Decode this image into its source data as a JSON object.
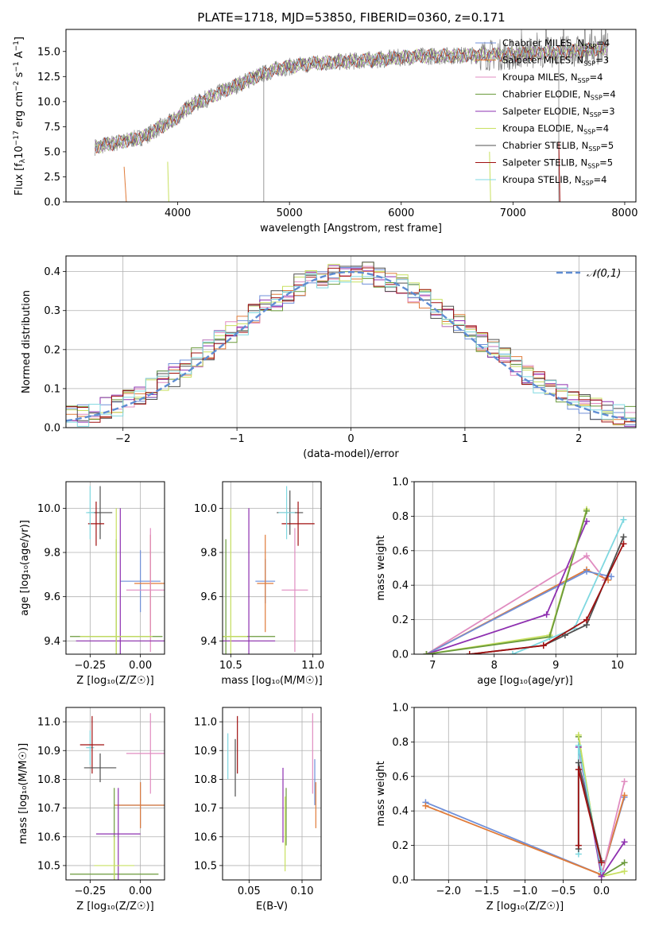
{
  "figure": {
    "title": "PLATE=1718, MJD=53850, FIBERID=0360, z=0.171"
  },
  "colors": {
    "chabrier_miles": "#6f8fd8",
    "salpeter_miles": "#e07b39",
    "kroupa_miles": "#e08cc0",
    "chabrier_elodie": "#6a9a3a",
    "salpeter_elodie": "#8e30b0",
    "kroupa_elodie": "#c8e060",
    "chabrier_stelib": "#505050",
    "salpeter_stelib": "#a01010",
    "kroupa_stelib": "#7fd8e0",
    "data": "#808080"
  },
  "chart_data": [
    {
      "id": "spectrum",
      "type": "line",
      "xlabel": "wavelength [Angstrom, rest frame]",
      "ylabel_parts": [
        "Flux [f",
        "λ",
        "10",
        "−17",
        " erg cm",
        "−2",
        " s",
        "−1",
        " A",
        "−1",
        "]"
      ],
      "xlim": [
        3000,
        8100
      ],
      "ylim": [
        0,
        17.2
      ],
      "xticks": [
        4000,
        5000,
        6000,
        7000,
        8000
      ],
      "yticks": [
        0.0,
        2.5,
        5.0,
        7.5,
        10.0,
        12.5,
        15.0
      ],
      "legend_position": "right",
      "legend": [
        {
          "base": "Chabrier MILES, N",
          "sub": "SSP",
          "tail": "=4",
          "color_key": "chabrier_miles"
        },
        {
          "base": "Salpeter MILES, N",
          "sub": "SSP",
          "tail": "=3",
          "color_key": "salpeter_miles"
        },
        {
          "base": "Kroupa MILES, N",
          "sub": "SSP",
          "tail": "=4",
          "color_key": "kroupa_miles"
        },
        {
          "base": "Chabrier ELODIE, N",
          "sub": "SSP",
          "tail": "=4",
          "color_key": "chabrier_elodie"
        },
        {
          "base": "Salpeter ELODIE, N",
          "sub": "SSP",
          "tail": "=3",
          "color_key": "salpeter_elodie"
        },
        {
          "base": "Kroupa ELODIE, N",
          "sub": "SSP",
          "tail": "=4",
          "color_key": "kroupa_elodie"
        },
        {
          "base": "Chabrier STELIB, N",
          "sub": "SSP",
          "tail": "=5",
          "color_key": "chabrier_stelib"
        },
        {
          "base": "Salpeter STELIB, N",
          "sub": "SSP",
          "tail": "=5",
          "color_key": "salpeter_stelib"
        },
        {
          "base": "Kroupa STELIB, N",
          "sub": "SSP",
          "tail": "=4",
          "color_key": "kroupa_stelib"
        }
      ],
      "continuum": [
        [
          3260,
          5.5
        ],
        [
          3500,
          6.0
        ],
        [
          3700,
          6.5
        ],
        [
          3850,
          7.5
        ],
        [
          3950,
          8.0
        ],
        [
          4100,
          9.5
        ],
        [
          4300,
          10.5
        ],
        [
          4500,
          11.5
        ],
        [
          4700,
          12.5
        ],
        [
          4900,
          13.3
        ],
        [
          5200,
          13.8
        ],
        [
          5500,
          14.0
        ],
        [
          5800,
          14.2
        ],
        [
          6100,
          14.5
        ],
        [
          6500,
          14.6
        ],
        [
          7000,
          14.7
        ],
        [
          7500,
          15.0
        ],
        [
          7850,
          15.3
        ]
      ],
      "model_start": [
        [
          3520,
          3.5
        ],
        [
          3540,
          0
        ],
        [
          3910,
          4
        ],
        [
          3920,
          0
        ],
        [
          6790,
          5
        ],
        [
          6800,
          0
        ],
        [
          7410,
          6
        ],
        [
          7420,
          0
        ]
      ],
      "data_dips": [
        [
          4770,
          0
        ],
        [
          7410,
          0
        ]
      ]
    },
    {
      "id": "residuals",
      "type": "bar",
      "xlabel": "(data-model)/error",
      "ylabel": "Normed distribution",
      "xlim": [
        -2.5,
        2.5
      ],
      "ylim": [
        0,
        0.44
      ],
      "xticks": [
        -2,
        -1,
        0,
        1,
        2
      ],
      "xtick_labels": [
        "−2",
        "−1",
        "0",
        "1",
        "2"
      ],
      "yticks": [
        0.0,
        0.1,
        0.2,
        0.3,
        0.4
      ],
      "grid": true,
      "legend_position": "top-right",
      "legend": [
        {
          "label": "𝒩(0,1)",
          "color": "#5f8dd3",
          "style": "dashed"
        }
      ],
      "bin_width": 0.1,
      "bins_start": -2.5
    },
    {
      "id": "age_vs_Z",
      "type": "scatter",
      "xlabel": "Z [log₁₀(Z/Z☉)]",
      "ylabel": "age  [log₁₀(age/yr)]",
      "xlim": [
        -0.37,
        0.12
      ],
      "ylim": [
        9.34,
        10.12
      ],
      "xticks": [
        -0.25,
        0.0
      ],
      "xtick_labels": [
        "−0.25",
        "0.00"
      ],
      "yticks": [
        9.4,
        9.6,
        9.8,
        10.0
      ],
      "grid": true,
      "points": [
        {
          "x": -0.2,
          "y": 9.98,
          "xerr": 0.06,
          "yerr": 0.12,
          "color_key": "chabrier_stelib"
        },
        {
          "x": -0.22,
          "y": 9.93,
          "xerr": 0.04,
          "yerr": 0.1,
          "color_key": "salpeter_stelib"
        },
        {
          "x": -0.25,
          "y": 9.98,
          "xerr": 0.02,
          "yerr": 0.12,
          "color_key": "kroupa_stelib"
        },
        {
          "x": 0.0,
          "y": 9.67,
          "xerr": 0.1,
          "yerr": 0.14,
          "color_key": "chabrier_miles"
        },
        {
          "x": 0.05,
          "y": 9.66,
          "xerr": 0.08,
          "yerr": 0.22,
          "color_key": "salpeter_miles"
        },
        {
          "x": 0.05,
          "y": 9.63,
          "xerr": 0.12,
          "yerr": 0.28,
          "color_key": "kroupa_miles"
        },
        {
          "x": -0.12,
          "y": 9.42,
          "xerr": 0.23,
          "yerr": 0.44,
          "color_key": "chabrier_elodie"
        },
        {
          "x": -0.1,
          "y": 9.4,
          "xerr": 0.22,
          "yerr": 0.6,
          "color_key": "salpeter_elodie"
        },
        {
          "x": -0.12,
          "y": 9.42,
          "xerr": 0.18,
          "yerr": 0.58,
          "color_key": "kroupa_elodie"
        }
      ]
    },
    {
      "id": "age_vs_mass",
      "type": "scatter",
      "xlabel": "mass [log₁₀(M/M☉)]",
      "ylabel": "",
      "xlim": [
        10.45,
        11.05
      ],
      "ylim": [
        9.34,
        10.12
      ],
      "xticks": [
        10.5,
        11.0
      ],
      "xtick_labels": [
        "10.5",
        "11.0"
      ],
      "yticks": [
        9.4,
        9.6,
        9.8,
        10.0
      ],
      "grid": true,
      "points": [
        {
          "x": 10.86,
          "y": 9.98,
          "xerr": 0.08,
          "yerr": 0.1,
          "color_key": "chabrier_stelib"
        },
        {
          "x": 10.91,
          "y": 9.93,
          "xerr": 0.1,
          "yerr": 0.1,
          "color_key": "salpeter_stelib"
        },
        {
          "x": 10.84,
          "y": 9.98,
          "xerr": 0.05,
          "yerr": 0.12,
          "color_key": "kroupa_stelib"
        },
        {
          "x": 10.71,
          "y": 9.67,
          "xerr": 0.06,
          "yerr": 0.1,
          "color_key": "chabrier_miles"
        },
        {
          "x": 10.71,
          "y": 9.66,
          "xerr": 0.05,
          "yerr": 0.22,
          "color_key": "salpeter_miles"
        },
        {
          "x": 10.89,
          "y": 9.63,
          "xerr": 0.08,
          "yerr": 0.28,
          "color_key": "kroupa_miles"
        },
        {
          "x": 10.47,
          "y": 9.42,
          "xerr": 0.3,
          "yerr": 0.44,
          "color_key": "chabrier_elodie"
        },
        {
          "x": 10.61,
          "y": 9.4,
          "xerr": 0.16,
          "yerr": 0.6,
          "color_key": "salpeter_elodie"
        },
        {
          "x": 10.5,
          "y": 9.42,
          "xerr": 0.1,
          "yerr": 0.58,
          "color_key": "kroupa_elodie"
        }
      ]
    },
    {
      "id": "weight_vs_age",
      "type": "line",
      "xlabel": "age  [log₁₀(age/yr)]",
      "ylabel": "mass weight",
      "xlim": [
        6.7,
        10.3
      ],
      "ylim": [
        0,
        1.0
      ],
      "xticks": [
        7,
        8,
        9,
        10
      ],
      "xtick_labels": [
        "7",
        "8",
        "9",
        "10"
      ],
      "yticks": [
        0.0,
        0.2,
        0.4,
        0.6,
        0.8,
        1.0
      ],
      "grid": true,
      "series": [
        {
          "color_key": "kroupa_miles",
          "points": [
            [
              6.9,
              0.0
            ],
            [
              9.5,
              0.57
            ],
            [
              9.8,
              0.43
            ]
          ]
        },
        {
          "color_key": "salpeter_miles",
          "points": [
            [
              6.9,
              0.0
            ],
            [
              9.5,
              0.49
            ],
            [
              9.85,
              0.43
            ]
          ]
        },
        {
          "color_key": "chabrier_miles",
          "points": [
            [
              6.9,
              0.0
            ],
            [
              9.5,
              0.48
            ],
            [
              9.9,
              0.45
            ]
          ]
        },
        {
          "color_key": "salpeter_elodie",
          "points": [
            [
              6.9,
              0.0
            ],
            [
              8.85,
              0.23
            ],
            [
              9.5,
              0.77
            ]
          ]
        },
        {
          "color_key": "kroupa_elodie",
          "points": [
            [
              6.9,
              0.0
            ],
            [
              8.9,
              0.11
            ],
            [
              9.5,
              0.84
            ]
          ]
        },
        {
          "color_key": "chabrier_elodie",
          "points": [
            [
              6.9,
              0.0
            ],
            [
              8.9,
              0.1
            ],
            [
              9.5,
              0.83
            ]
          ]
        },
        {
          "color_key": "kroupa_stelib",
          "points": [
            [
              8.3,
              0.0
            ],
            [
              9.3,
              0.15
            ],
            [
              10.1,
              0.78
            ]
          ]
        },
        {
          "color_key": "chabrier_stelib",
          "points": [
            [
              7.6,
              0.0
            ],
            [
              8.8,
              0.05
            ],
            [
              9.15,
              0.11
            ],
            [
              9.5,
              0.17
            ],
            [
              10.1,
              0.68
            ]
          ]
        },
        {
          "color_key": "salpeter_stelib",
          "points": [
            [
              7.6,
              0.0
            ],
            [
              8.8,
              0.05
            ],
            [
              9.5,
              0.2
            ],
            [
              10.1,
              0.64
            ]
          ]
        }
      ]
    },
    {
      "id": "mass_vs_Z",
      "type": "scatter",
      "xlabel": "Z [log₁₀(Z/Z☉)]",
      "ylabel": "mass [log₁₀(M/M☉)]",
      "xlim": [
        -0.37,
        0.12
      ],
      "ylim": [
        10.45,
        11.05
      ],
      "xticks": [
        -0.25,
        0.0
      ],
      "xtick_labels": [
        "−0.25",
        "0.00"
      ],
      "yticks": [
        10.5,
        10.6,
        10.7,
        10.8,
        10.9,
        11.0
      ],
      "grid": true,
      "points": [
        {
          "x": -0.25,
          "y": 10.91,
          "xerr": 0.02,
          "yerr": 0.06,
          "color_key": "kroupa_stelib"
        },
        {
          "x": -0.24,
          "y": 10.92,
          "xerr": 0.06,
          "yerr": 0.1,
          "color_key": "salpeter_stelib"
        },
        {
          "x": -0.2,
          "y": 10.84,
          "xerr": 0.08,
          "yerr": 0.05,
          "color_key": "chabrier_stelib"
        },
        {
          "x": 0.0,
          "y": 10.71,
          "xerr": 0.12,
          "yerr": 0.08,
          "color_key": "chabrier_miles"
        },
        {
          "x": 0.0,
          "y": 10.71,
          "xerr": 0.13,
          "yerr": 0.08,
          "color_key": "salpeter_miles"
        },
        {
          "x": 0.05,
          "y": 10.89,
          "xerr": 0.12,
          "yerr": 0.14,
          "color_key": "kroupa_miles"
        },
        {
          "x": -0.13,
          "y": 10.47,
          "xerr": 0.22,
          "yerr": 0.3,
          "color_key": "chabrier_elodie"
        },
        {
          "x": -0.11,
          "y": 10.61,
          "xerr": 0.11,
          "yerr": 0.16,
          "color_key": "salpeter_elodie"
        },
        {
          "x": -0.13,
          "y": 10.5,
          "xerr": 0.1,
          "yerr": 0.1,
          "color_key": "kroupa_elodie"
        }
      ]
    },
    {
      "id": "mass_vs_ebv",
      "type": "scatter",
      "xlabel": "E(B-V)",
      "ylabel": "",
      "xlim": [
        0.025,
        0.118
      ],
      "ylim": [
        10.45,
        11.05
      ],
      "xticks": [
        0.05,
        0.1
      ],
      "xtick_labels": [
        "0.05",
        "0.10"
      ],
      "yticks": [
        10.5,
        10.6,
        10.7,
        10.8,
        10.9,
        11.0
      ],
      "grid": true,
      "points": [
        {
          "x": 0.03,
          "y": 10.88,
          "xerr": 0.0,
          "yerr": 0.08,
          "color_key": "kroupa_stelib"
        },
        {
          "x": 0.037,
          "y": 10.84,
          "xerr": 0.0,
          "yerr": 0.1,
          "color_key": "chabrier_stelib"
        },
        {
          "x": 0.039,
          "y": 10.92,
          "xerr": 0.0,
          "yerr": 0.1,
          "color_key": "salpeter_stelib"
        },
        {
          "x": 0.082,
          "y": 10.71,
          "xerr": 0.0,
          "yerr": 0.13,
          "color_key": "salpeter_elodie"
        },
        {
          "x": 0.085,
          "y": 10.67,
          "xerr": 0.0,
          "yerr": 0.1,
          "color_key": "chabrier_elodie"
        },
        {
          "x": 0.084,
          "y": 10.61,
          "xerr": 0.0,
          "yerr": 0.13,
          "color_key": "kroupa_elodie"
        },
        {
          "x": 0.11,
          "y": 10.89,
          "xerr": 0.0,
          "yerr": 0.14,
          "color_key": "kroupa_miles"
        },
        {
          "x": 0.112,
          "y": 10.79,
          "xerr": 0.0,
          "yerr": 0.08,
          "color_key": "chabrier_miles"
        },
        {
          "x": 0.113,
          "y": 10.71,
          "xerr": 0.0,
          "yerr": 0.08,
          "color_key": "salpeter_miles"
        }
      ]
    },
    {
      "id": "weight_vs_Z",
      "type": "line",
      "xlabel": "Z [log₁₀(Z/Z☉)]",
      "ylabel": "mass weight",
      "xlim": [
        -2.45,
        0.45
      ],
      "ylim": [
        0,
        1.0
      ],
      "xticks": [
        -2.0,
        -1.5,
        -1.0,
        -0.5,
        0.0
      ],
      "xtick_labels": [
        "−2.0",
        "−1.5",
        "−1.0",
        "−0.5",
        "0.0"
      ],
      "yticks": [
        0.0,
        0.2,
        0.4,
        0.6,
        0.8,
        1.0
      ],
      "grid": true,
      "series": [
        {
          "color_key": "chabrier_miles",
          "points": [
            [
              -2.3,
              0.45
            ],
            [
              0.0,
              0.03
            ],
            [
              0.3,
              0.48
            ]
          ]
        },
        {
          "color_key": "salpeter_miles",
          "points": [
            [
              -2.3,
              0.43
            ],
            [
              0.0,
              0.03
            ],
            [
              0.3,
              0.49
            ]
          ]
        },
        {
          "color_key": "kroupa_miles",
          "points": [
            [
              0.0,
              0.02
            ],
            [
              0.3,
              0.57
            ]
          ]
        },
        {
          "color_key": "chabrier_elodie",
          "points": [
            [
              -0.3,
              0.83
            ],
            [
              0.0,
              0.02
            ],
            [
              0.3,
              0.1
            ]
          ]
        },
        {
          "color_key": "kroupa_elodie",
          "points": [
            [
              -0.3,
              0.84
            ],
            [
              0.0,
              0.02
            ],
            [
              0.3,
              0.05
            ]
          ]
        },
        {
          "color_key": "salpeter_elodie",
          "points": [
            [
              -0.3,
              0.77
            ],
            [
              0.0,
              0.02
            ],
            [
              0.3,
              0.22
            ]
          ]
        },
        {
          "color_key": "kroupa_stelib",
          "points": [
            [
              -0.3,
              0.15
            ],
            [
              -0.3,
              0.78
            ],
            [
              0.0,
              0.05
            ]
          ]
        },
        {
          "color_key": "chabrier_stelib",
          "points": [
            [
              -0.3,
              0.18
            ],
            [
              -0.3,
              0.68
            ],
            [
              0.0,
              0.11
            ]
          ]
        },
        {
          "color_key": "salpeter_stelib",
          "points": [
            [
              -0.3,
              0.2
            ],
            [
              -0.3,
              0.64
            ],
            [
              0.0,
              0.1
            ]
          ]
        }
      ]
    }
  ]
}
